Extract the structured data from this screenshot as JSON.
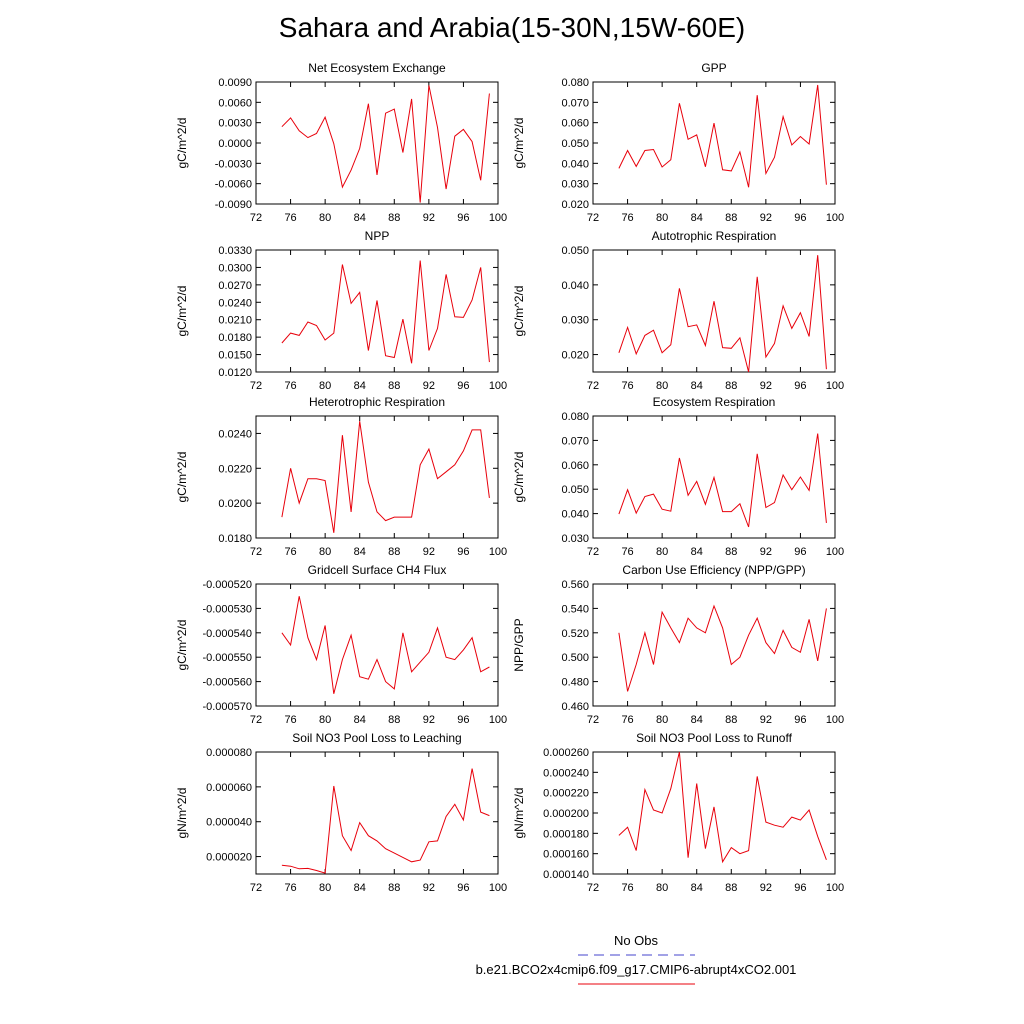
{
  "title": "Sahara and Arabia(15-30N,15W-60E)",
  "colors": {
    "line": "#e8000b",
    "obs": "#4444cc",
    "axis": "#000000"
  },
  "legend": {
    "obs_label": "No Obs",
    "model_label": "b.e21.BCO2x4cmip6.f09_g17.CMIP6-abrupt4xCO2.001"
  },
  "chart_data": [
    {
      "type": "line",
      "title": "Net Ecosystem Exchange",
      "ylabel": "gC/m^2/d",
      "xlim": [
        72,
        100
      ],
      "xticks": [
        "72",
        "76",
        "80",
        "84",
        "88",
        "92",
        "96",
        "100"
      ],
      "ylim": [
        -0.009,
        0.009
      ],
      "yticks": [
        "-0.0090",
        "-0.0060",
        "-0.0030",
        "0.0000",
        "0.0030",
        "0.0060",
        "0.0090"
      ],
      "x": [
        75,
        76,
        77,
        78,
        79,
        80,
        81,
        82,
        83,
        84,
        85,
        86,
        87,
        88,
        89,
        90,
        91,
        92,
        93,
        94,
        95,
        96,
        97,
        98,
        99
      ],
      "y": [
        0.0024,
        0.0037,
        0.0018,
        0.0008,
        0.0014,
        0.0038,
        -0.0001,
        -0.0065,
        -0.004,
        -0.0008,
        0.0058,
        -0.0047,
        0.0044,
        0.005,
        -0.0014,
        0.0065,
        -0.0088,
        0.0085,
        0.0023,
        -0.0068,
        0.001,
        0.002,
        0.0002,
        -0.0055,
        0.0073
      ]
    },
    {
      "type": "line",
      "title": "GPP",
      "ylabel": "gC/m^2/d",
      "xlim": [
        72,
        100
      ],
      "xticks": [
        "72",
        "76",
        "80",
        "84",
        "88",
        "92",
        "96",
        "100"
      ],
      "ylim": [
        0.02,
        0.08
      ],
      "yticks": [
        "0.020",
        "0.030",
        "0.040",
        "0.050",
        "0.060",
        "0.070",
        "0.080"
      ],
      "x": [
        75,
        76,
        77,
        78,
        79,
        80,
        81,
        82,
        83,
        84,
        85,
        86,
        87,
        88,
        89,
        90,
        91,
        92,
        93,
        94,
        95,
        96,
        97,
        98,
        99
      ],
      "y": [
        0.0375,
        0.0463,
        0.0385,
        0.0463,
        0.0468,
        0.0382,
        0.0418,
        0.0695,
        0.0518,
        0.054,
        0.0383,
        0.0598,
        0.0368,
        0.0363,
        0.0456,
        0.0282,
        0.0735,
        0.035,
        0.043,
        0.063,
        0.049,
        0.0532,
        0.0495,
        0.0785,
        0.0295
      ]
    },
    {
      "type": "line",
      "title": "NPP",
      "ylabel": "gC/m^2/d",
      "xlim": [
        72,
        100
      ],
      "xticks": [
        "72",
        "76",
        "80",
        "84",
        "88",
        "92",
        "96",
        "100"
      ],
      "ylim": [
        0.012,
        0.033
      ],
      "yticks": [
        "0.0120",
        "0.0150",
        "0.0180",
        "0.0210",
        "0.0240",
        "0.0270",
        "0.0300",
        "0.0330"
      ],
      "x": [
        75,
        76,
        77,
        78,
        79,
        80,
        81,
        82,
        83,
        84,
        85,
        86,
        87,
        88,
        89,
        90,
        91,
        92,
        93,
        94,
        95,
        96,
        97,
        98,
        99
      ],
      "y": [
        0.017,
        0.0187,
        0.0183,
        0.0206,
        0.02,
        0.0175,
        0.0187,
        0.0305,
        0.0238,
        0.0257,
        0.0157,
        0.0243,
        0.0148,
        0.0145,
        0.0211,
        0.0135,
        0.0312,
        0.0157,
        0.0195,
        0.0288,
        0.0215,
        0.0214,
        0.0244,
        0.03,
        0.0137
      ]
    },
    {
      "type": "line",
      "title": "Autotrophic Respiration",
      "ylabel": "gC/m^2/d",
      "xlim": [
        72,
        100
      ],
      "xticks": [
        "72",
        "76",
        "80",
        "84",
        "88",
        "92",
        "96",
        "100"
      ],
      "ylim": [
        0.015,
        0.05
      ],
      "yticks": [
        "0.020",
        "0.030",
        "0.040",
        "0.050"
      ],
      "x": [
        75,
        76,
        77,
        78,
        79,
        80,
        81,
        82,
        83,
        84,
        85,
        86,
        87,
        88,
        89,
        90,
        91,
        92,
        93,
        94,
        95,
        96,
        97,
        98,
        99
      ],
      "y": [
        0.0205,
        0.0278,
        0.0202,
        0.0255,
        0.027,
        0.0205,
        0.0228,
        0.039,
        0.028,
        0.0285,
        0.0226,
        0.0353,
        0.022,
        0.0218,
        0.0248,
        0.015,
        0.0423,
        0.0193,
        0.0232,
        0.034,
        0.0275,
        0.032,
        0.0252,
        0.0485,
        0.0158
      ]
    },
    {
      "type": "line",
      "title": "Heterotrophic Respiration",
      "ylabel": "gC/m^2/d",
      "xlim": [
        72,
        100
      ],
      "xticks": [
        "72",
        "76",
        "80",
        "84",
        "88",
        "92",
        "96",
        "100"
      ],
      "ylim": [
        0.018,
        0.025
      ],
      "yticks": [
        "0.0180",
        "0.0200",
        "0.0220",
        "0.0240"
      ],
      "x": [
        75,
        76,
        77,
        78,
        79,
        80,
        81,
        82,
        83,
        84,
        85,
        86,
        87,
        88,
        89,
        90,
        91,
        92,
        93,
        94,
        95,
        96,
        97,
        98,
        99
      ],
      "y": [
        0.0192,
        0.022,
        0.02,
        0.0214,
        0.0214,
        0.0213,
        0.0183,
        0.0239,
        0.0195,
        0.0247,
        0.0212,
        0.0195,
        0.019,
        0.0192,
        0.0192,
        0.0192,
        0.0222,
        0.0231,
        0.0214,
        0.0218,
        0.0222,
        0.023,
        0.0242,
        0.0242,
        0.0203
      ]
    },
    {
      "type": "line",
      "title": "Ecosystem Respiration",
      "ylabel": "gC/m^2/d",
      "xlim": [
        72,
        100
      ],
      "xticks": [
        "72",
        "76",
        "80",
        "84",
        "88",
        "92",
        "96",
        "100"
      ],
      "ylim": [
        0.03,
        0.08
      ],
      "yticks": [
        "0.030",
        "0.040",
        "0.050",
        "0.060",
        "0.070",
        "0.080"
      ],
      "x": [
        75,
        76,
        77,
        78,
        79,
        80,
        81,
        82,
        83,
        84,
        85,
        86,
        87,
        88,
        89,
        90,
        91,
        92,
        93,
        94,
        95,
        96,
        97,
        98,
        99
      ],
      "y": [
        0.0398,
        0.0498,
        0.0402,
        0.047,
        0.048,
        0.0418,
        0.041,
        0.0628,
        0.0475,
        0.0532,
        0.0438,
        0.0548,
        0.0408,
        0.0408,
        0.044,
        0.0345,
        0.0645,
        0.0425,
        0.0445,
        0.0558,
        0.0498,
        0.055,
        0.0495,
        0.0728,
        0.0362
      ]
    },
    {
      "type": "line",
      "title": "Gridcell Surface CH4 Flux",
      "ylabel": "gC/m^2/d",
      "xlim": [
        72,
        100
      ],
      "xticks": [
        "72",
        "76",
        "80",
        "84",
        "88",
        "92",
        "96",
        "100"
      ],
      "ylim": [
        -0.00057,
        -0.00052
      ],
      "yticks": [
        "-0.000570",
        "-0.000560",
        "-0.000550",
        "-0.000540",
        "-0.000530",
        "-0.000520"
      ],
      "x": [
        75,
        76,
        77,
        78,
        79,
        80,
        81,
        82,
        83,
        84,
        85,
        86,
        87,
        88,
        89,
        90,
        91,
        92,
        93,
        94,
        95,
        96,
        97,
        98,
        99
      ],
      "y": [
        -0.00054,
        -0.000545,
        -0.000525,
        -0.000542,
        -0.000551,
        -0.000537,
        -0.000565,
        -0.000551,
        -0.000541,
        -0.000558,
        -0.000559,
        -0.000551,
        -0.00056,
        -0.000563,
        -0.00054,
        -0.000556,
        -0.000552,
        -0.000548,
        -0.000538,
        -0.00055,
        -0.000551,
        -0.000547,
        -0.000542,
        -0.000556,
        -0.000554
      ]
    },
    {
      "type": "line",
      "title": "Carbon Use Efficiency (NPP/GPP)",
      "ylabel": "NPP/GPP",
      "xlim": [
        72,
        100
      ],
      "xticks": [
        "72",
        "76",
        "80",
        "84",
        "88",
        "92",
        "96",
        "100"
      ],
      "ylim": [
        0.46,
        0.56
      ],
      "yticks": [
        "0.460",
        "0.480",
        "0.500",
        "0.520",
        "0.540",
        "0.560"
      ],
      "x": [
        75,
        76,
        77,
        78,
        79,
        80,
        81,
        82,
        83,
        84,
        85,
        86,
        87,
        88,
        89,
        90,
        91,
        92,
        93,
        94,
        95,
        96,
        97,
        98,
        99
      ],
      "y": [
        0.52,
        0.472,
        0.494,
        0.52,
        0.494,
        0.537,
        0.524,
        0.512,
        0.532,
        0.524,
        0.52,
        0.542,
        0.524,
        0.494,
        0.5,
        0.518,
        0.532,
        0.512,
        0.503,
        0.522,
        0.508,
        0.504,
        0.531,
        0.497,
        0.54
      ]
    },
    {
      "type": "line",
      "title": "Soil NO3 Pool Loss to Leaching",
      "ylabel": "gN/m^2/d",
      "xlim": [
        72,
        100
      ],
      "xticks": [
        "72",
        "76",
        "80",
        "84",
        "88",
        "92",
        "96",
        "100"
      ],
      "ylim": [
        1e-05,
        8e-05
      ],
      "yticks": [
        "0.000020",
        "0.000040",
        "0.000060",
        "0.000080"
      ],
      "x": [
        75,
        76,
        77,
        78,
        79,
        80,
        81,
        82,
        83,
        84,
        85,
        86,
        87,
        88,
        89,
        90,
        91,
        92,
        93,
        94,
        95,
        96,
        97,
        98,
        99
      ],
      "y": [
        1.5e-05,
        1.45e-05,
        1.3e-05,
        1.32e-05,
        1.2e-05,
        1.05e-05,
        6.05e-05,
        3.2e-05,
        2.35e-05,
        3.95e-05,
        3.2e-05,
        2.9e-05,
        2.45e-05,
        2.2e-05,
        1.95e-05,
        1.7e-05,
        1.8e-05,
        2.85e-05,
        2.9e-05,
        4.3e-05,
        5e-05,
        4.1e-05,
        7.05e-05,
        4.55e-05,
        4.35e-05
      ]
    },
    {
      "type": "line",
      "title": "Soil NO3 Pool Loss to Runoff",
      "ylabel": "gN/m^2/d",
      "xlim": [
        72,
        100
      ],
      "xticks": [
        "72",
        "76",
        "80",
        "84",
        "88",
        "92",
        "96",
        "100"
      ],
      "ylim": [
        0.00014,
        0.00026
      ],
      "yticks": [
        "0.000140",
        "0.000160",
        "0.000180",
        "0.000200",
        "0.000220",
        "0.000240",
        "0.000260"
      ],
      "x": [
        75,
        76,
        77,
        78,
        79,
        80,
        81,
        82,
        83,
        84,
        85,
        86,
        87,
        88,
        89,
        90,
        91,
        92,
        93,
        94,
        95,
        96,
        97,
        98,
        99
      ],
      "y": [
        0.000178,
        0.000186,
        0.000163,
        0.000223,
        0.000203,
        0.0002,
        0.000224,
        0.00026,
        0.000156,
        0.000229,
        0.000165,
        0.000206,
        0.000152,
        0.000166,
        0.00016,
        0.000163,
        0.000236,
        0.000191,
        0.000188,
        0.000186,
        0.000196,
        0.000193,
        0.000203,
        0.000177,
        0.000154
      ]
    }
  ]
}
